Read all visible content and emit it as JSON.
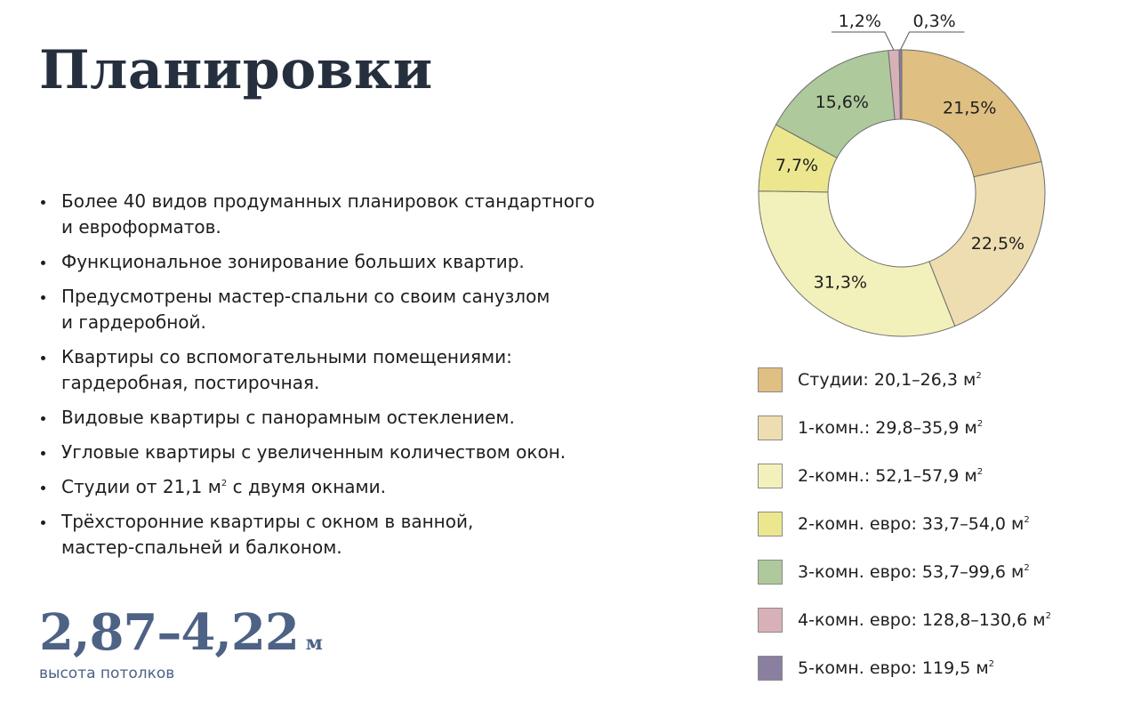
{
  "title": "Планировки",
  "bullets": [
    {
      "text": "Более 40 видов продуманных планировок стандартного\nи евроформатов."
    },
    {
      "text": "Функциональное зонирование больших квартир."
    },
    {
      "text": "Предусмотрены мастер-спальни со своим санузлом\nи гардеробной."
    },
    {
      "text": "Квартиры со вспомогательными помещениями:\nгардеробная, постирочная."
    },
    {
      "text": "Видовые квартиры с панорамным остеклением."
    },
    {
      "text": "Угловые квартиры с увеличенным количеством окон."
    },
    {
      "text": "Студии от 21,1 м",
      "sup": "2",
      "after": " с двумя окнами."
    },
    {
      "text": "Трёхсторонние квартиры с окном в ванной,\nмастер-спальней и балконом."
    }
  ],
  "stat": {
    "value": "2,87–4,22",
    "unit": "м",
    "label": "высота потолков"
  },
  "chart_data": {
    "type": "pie",
    "title": "",
    "series": [
      {
        "name": "Студии: 20,1–26,3 м",
        "sup": "2",
        "value": 21.5,
        "label": "21,5%",
        "color": "#dfbf82"
      },
      {
        "name": "1-комн.: 29,8–35,9 м",
        "sup": "2",
        "value": 22.5,
        "label": "22,5%",
        "color": "#eeddb0"
      },
      {
        "name": "2-комн.: 52,1–57,9 м",
        "sup": "2",
        "value": 31.3,
        "label": "31,3%",
        "color": "#f3f1bb"
      },
      {
        "name": "2-комн. евро: 33,7–54,0 м",
        "sup": "2",
        "value": 7.7,
        "label": "7,7%",
        "color": "#ece78e"
      },
      {
        "name": "3-комн. евро: 53,7–99,6 м",
        "sup": "2",
        "value": 15.6,
        "label": "15,6%",
        "color": "#aec99c"
      },
      {
        "name": "4-комн. евро: 128,8–130,6 м",
        "sup": "2",
        "value": 1.2,
        "label": "1,2%",
        "color": "#d8b1b8"
      },
      {
        "name": "5-комн. евро: 119,5 м",
        "sup": "2",
        "value": 0.3,
        "label": "0,3%",
        "color": "#8a7fa0"
      }
    ],
    "donut": true,
    "start_angle": "top",
    "direction": "clockwise",
    "legend": "bottom"
  }
}
